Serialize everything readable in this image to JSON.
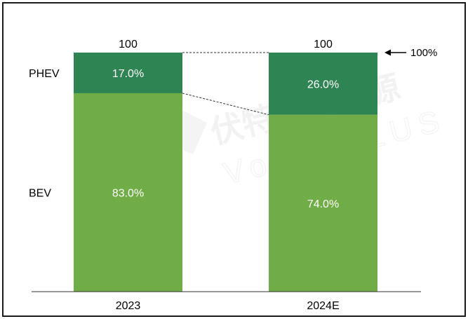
{
  "chart_data": {
    "type": "bar",
    "stacked": true,
    "normalized_percent": true,
    "categories": [
      "2023",
      "2024E"
    ],
    "series": [
      {
        "name": "BEV",
        "values": [
          83.0,
          74.0
        ],
        "labels": [
          "83.0%",
          "74.0%"
        ],
        "color": "#70ad47"
      },
      {
        "name": "PHEV",
        "values": [
          17.0,
          26.0
        ],
        "labels": [
          "17.0%",
          "26.0%"
        ],
        "color": "#2e8452"
      }
    ],
    "totals": [
      "100",
      "100"
    ],
    "annotation": "100%",
    "ylim": [
      0,
      100
    ],
    "grid": false,
    "connector_lines": "dashed",
    "watermark": "伏特加储能源 Volta PLUS"
  }
}
